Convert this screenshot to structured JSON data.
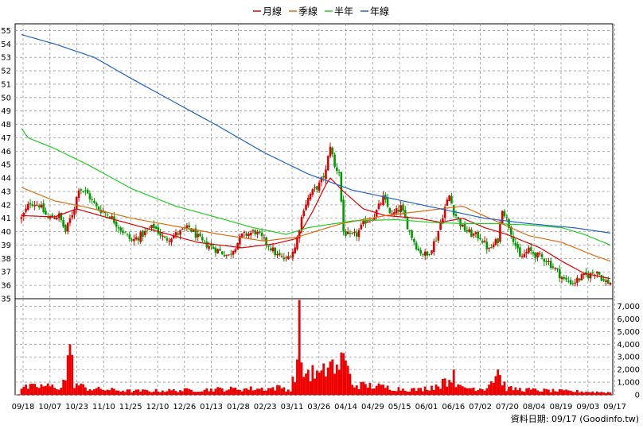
{
  "legend": [
    {
      "label": "月線",
      "color": "#dd0000"
    },
    {
      "label": "季線",
      "color": "#e06a10"
    },
    {
      "label": "半年",
      "color": "#22cc22"
    },
    {
      "label": "年線",
      "color": "#1f63c9"
    }
  ],
  "source_text": "資料日期: 09/17  (Goodinfo.tw)",
  "chart_data": [
    {
      "type": "candlestick",
      "title": "",
      "ylim": [
        35,
        55.5
      ],
      "y_ticks": [
        35,
        36,
        37,
        38,
        39,
        40,
        41,
        42,
        43,
        44,
        45,
        46,
        47,
        48,
        49,
        50,
        51,
        52,
        53,
        54,
        55
      ],
      "x_tick_labels": [
        "09/18",
        "10/07",
        "10/23",
        "11/10",
        "11/25",
        "12/10",
        "12/26",
        "01/13",
        "01/28",
        "02/23",
        "03/11",
        "03/26",
        "04/14",
        "04/29",
        "05/15",
        "06/01",
        "06/16",
        "07/02",
        "07/20",
        "08/04",
        "08/19",
        "09/03",
        "09/17"
      ],
      "price_keypoints": [
        [
          0,
          41.0
        ],
        [
          4,
          42.2
        ],
        [
          8,
          42.0
        ],
        [
          12,
          41.0
        ],
        [
          17,
          41.2
        ],
        [
          20,
          40.0
        ],
        [
          24,
          41.8
        ],
        [
          26,
          43.3
        ],
        [
          30,
          42.8
        ],
        [
          34,
          41.8
        ],
        [
          40,
          41.2
        ],
        [
          45,
          40.2
        ],
        [
          50,
          39.3
        ],
        [
          55,
          39.8
        ],
        [
          60,
          40.4
        ],
        [
          65,
          39.4
        ],
        [
          70,
          39.8
        ],
        [
          76,
          40.3
        ],
        [
          82,
          39.2
        ],
        [
          88,
          38.7
        ],
        [
          94,
          38.2
        ],
        [
          100,
          39.7
        ],
        [
          106,
          40.0
        ],
        [
          112,
          39.0
        ],
        [
          116,
          38.2
        ],
        [
          120,
          37.9
        ],
        [
          124,
          38.8
        ],
        [
          126,
          40.3
        ],
        [
          128,
          41.8
        ],
        [
          131,
          42.8
        ],
        [
          135,
          43.5
        ],
        [
          138,
          44.5
        ],
        [
          140,
          46.5
        ],
        [
          142,
          44.8
        ],
        [
          144,
          44.5
        ],
        [
          146,
          40.0
        ],
        [
          149,
          39.6
        ],
        [
          152,
          39.8
        ],
        [
          156,
          40.8
        ],
        [
          160,
          41.2
        ],
        [
          164,
          42.5
        ],
        [
          168,
          41.2
        ],
        [
          172,
          41.8
        ],
        [
          176,
          40.0
        ],
        [
          180,
          38.6
        ],
        [
          184,
          38.2
        ],
        [
          188,
          39.5
        ],
        [
          192,
          41.8
        ],
        [
          194,
          42.7
        ],
        [
          196,
          41.5
        ],
        [
          200,
          40.3
        ],
        [
          204,
          39.8
        ],
        [
          208,
          39.6
        ],
        [
          212,
          38.6
        ],
        [
          216,
          39.4
        ],
        [
          218,
          41.8
        ],
        [
          222,
          40.0
        ],
        [
          226,
          38.0
        ],
        [
          230,
          38.6
        ],
        [
          234,
          38.2
        ],
        [
          238,
          37.9
        ],
        [
          242,
          37.2
        ],
        [
          246,
          36.4
        ],
        [
          250,
          36.2
        ],
        [
          254,
          36.6
        ],
        [
          258,
          36.8
        ],
        [
          261,
          37.1
        ],
        [
          264,
          36.3
        ],
        [
          267,
          36.2
        ]
      ],
      "vol_keypoints": [
        [
          0,
          550
        ],
        [
          10,
          700
        ],
        [
          18,
          600
        ],
        [
          20,
          1400
        ],
        [
          22,
          3800
        ],
        [
          24,
          900
        ],
        [
          30,
          500
        ],
        [
          50,
          300
        ],
        [
          70,
          350
        ],
        [
          90,
          450
        ],
        [
          112,
          500
        ],
        [
          118,
          600
        ],
        [
          122,
          350
        ],
        [
          125,
          2500
        ],
        [
          126,
          6400
        ],
        [
          127,
          1800
        ],
        [
          130,
          1800
        ],
        [
          136,
          1500
        ],
        [
          140,
          2600
        ],
        [
          142,
          1400
        ],
        [
          144,
          2400
        ],
        [
          146,
          3000
        ],
        [
          150,
          800
        ],
        [
          160,
          700
        ],
        [
          170,
          500
        ],
        [
          180,
          400
        ],
        [
          190,
          800
        ],
        [
          194,
          1200
        ],
        [
          196,
          1500
        ],
        [
          198,
          600
        ],
        [
          210,
          500
        ],
        [
          216,
          1700
        ],
        [
          220,
          500
        ],
        [
          230,
          400
        ],
        [
          245,
          300
        ],
        [
          267,
          200
        ]
      ],
      "vol_spikes": [
        [
          126,
          7500
        ],
        [
          22,
          4000
        ],
        [
          146,
          3300
        ],
        [
          148,
          2300
        ],
        [
          141,
          2800
        ],
        [
          143,
          2400
        ],
        [
          196,
          2000
        ],
        [
          216,
          2000
        ],
        [
          192,
          1300
        ]
      ],
      "series": [
        {
          "name": "月線",
          "color": "#dd0000",
          "keypoints": [
            [
              0,
              41.2
            ],
            [
              15,
              41.1
            ],
            [
              25,
              41.7
            ],
            [
              40,
              41.0
            ],
            [
              60,
              40.1
            ],
            [
              80,
              39.2
            ],
            [
              100,
              38.8
            ],
            [
              115,
              39.1
            ],
            [
              125,
              39.5
            ],
            [
              132,
              41.5
            ],
            [
              138,
              43.5
            ],
            [
              140,
              44.0
            ],
            [
              146,
              43.0
            ],
            [
              155,
              41.7
            ],
            [
              165,
              41.2
            ],
            [
              180,
              41.0
            ],
            [
              190,
              40.7
            ],
            [
              200,
              41.0
            ],
            [
              210,
              40.3
            ],
            [
              220,
              39.8
            ],
            [
              235,
              38.8
            ],
            [
              245,
              37.8
            ],
            [
              255,
              36.9
            ],
            [
              267,
              36.5
            ]
          ]
        },
        {
          "name": "季線",
          "color": "#e06a10",
          "keypoints": [
            [
              0,
              43.3
            ],
            [
              15,
              42.3
            ],
            [
              30,
              41.8
            ],
            [
              50,
              41.0
            ],
            [
              70,
              40.4
            ],
            [
              90,
              39.8
            ],
            [
              110,
              39.3
            ],
            [
              125,
              39.6
            ],
            [
              135,
              40.1
            ],
            [
              145,
              40.6
            ],
            [
              165,
              41.2
            ],
            [
              185,
              41.6
            ],
            [
              200,
              41.9
            ],
            [
              215,
              40.8
            ],
            [
              230,
              39.7
            ],
            [
              245,
              39.2
            ],
            [
              260,
              38.2
            ],
            [
              267,
              37.8
            ]
          ]
        },
        {
          "name": "半年",
          "color": "#22cc22",
          "keypoints": [
            [
              0,
              47.7
            ],
            [
              3,
              47.0
            ],
            [
              15,
              46.2
            ],
            [
              30,
              45.0
            ],
            [
              50,
              43.2
            ],
            [
              70,
              41.9
            ],
            [
              90,
              41.0
            ],
            [
              105,
              40.3
            ],
            [
              120,
              39.8
            ],
            [
              130,
              40.3
            ],
            [
              150,
              40.8
            ],
            [
              170,
              40.9
            ],
            [
              185,
              40.7
            ],
            [
              200,
              40.6
            ],
            [
              215,
              40.6
            ],
            [
              230,
              40.5
            ],
            [
              245,
              40.3
            ],
            [
              255,
              39.8
            ],
            [
              267,
              39.0
            ]
          ]
        },
        {
          "name": "年線",
          "color": "#1f63c9",
          "keypoints": [
            [
              0,
              54.7
            ],
            [
              15,
              54.0
            ],
            [
              33,
              53.0
            ],
            [
              50,
              51.4
            ],
            [
              70,
              49.6
            ],
            [
              90,
              47.8
            ],
            [
              110,
              45.9
            ],
            [
              130,
              44.3
            ],
            [
              150,
              43.1
            ],
            [
              170,
              42.4
            ],
            [
              190,
              41.7
            ],
            [
              210,
              41.0
            ],
            [
              230,
              40.6
            ],
            [
              250,
              40.3
            ],
            [
              267,
              39.9
            ]
          ]
        }
      ]
    },
    {
      "type": "bar",
      "title": "",
      "ylim": [
        0,
        7600
      ],
      "y_tick_labels": [
        "0",
        "1,000",
        "2,000",
        "3,000",
        "4,000",
        "5,000",
        "6,000",
        "7,000"
      ],
      "y_ticks": [
        0,
        1000,
        2000,
        3000,
        4000,
        5000,
        6000,
        7000
      ],
      "bar_color": "#ee0000"
    }
  ]
}
